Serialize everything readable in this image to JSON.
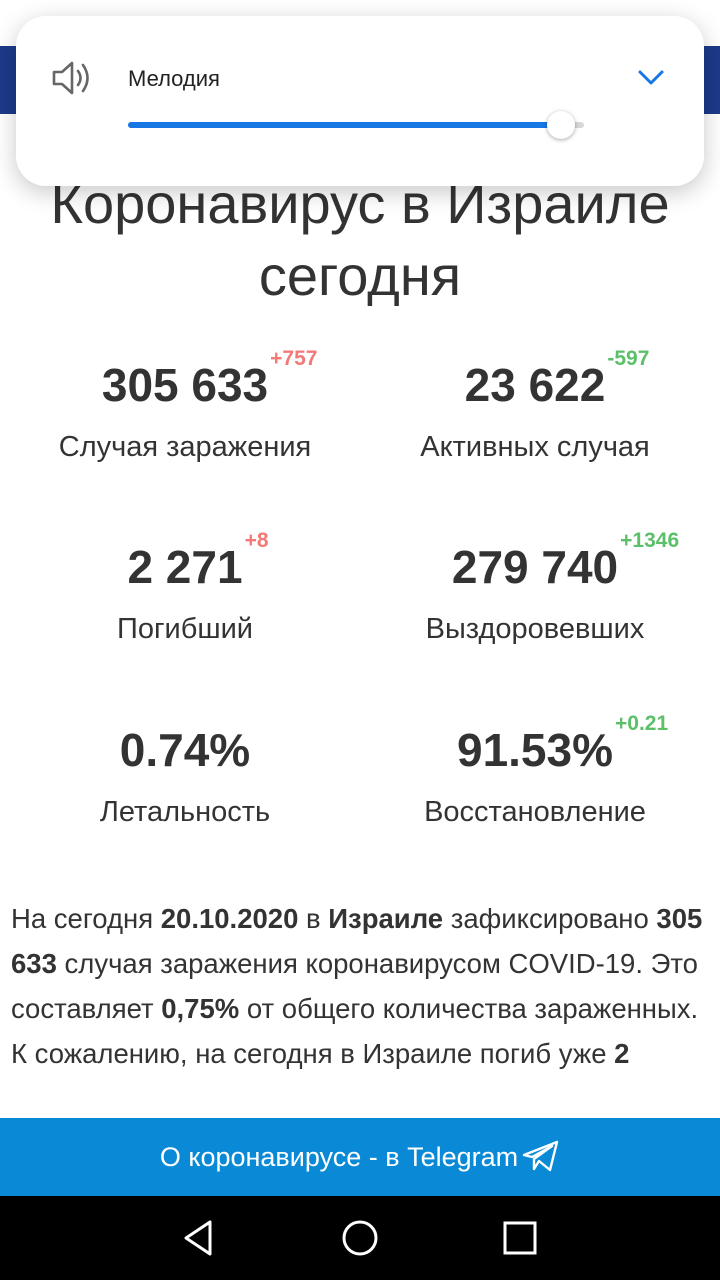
{
  "volume_panel": {
    "label": "Мелодия",
    "level": 0.95,
    "accent": "#1677e5",
    "icon": "speaker-icon",
    "expand_icon": "chevron-down-icon"
  },
  "page": {
    "title_line1": "Коронавирус в Израиле",
    "title_line2": "сегодня"
  },
  "stats": [
    {
      "value": "305 633",
      "delta": "+757",
      "delta_color": "red",
      "label": "Случая заражения"
    },
    {
      "value": "23 622",
      "delta": "-597",
      "delta_color": "green",
      "label": "Активных случая"
    },
    {
      "value": "2 271",
      "delta": "+8",
      "delta_color": "red",
      "label": "Погибший"
    },
    {
      "value": "279 740",
      "delta": "+1346",
      "delta_color": "green",
      "label": "Выздоровевших"
    },
    {
      "value": "0.74%",
      "delta": "",
      "delta_color": "red",
      "label": "Летальность"
    },
    {
      "value": "91.53%",
      "delta": "+0.21",
      "delta_color": "green",
      "label": "Восстановление"
    }
  ],
  "description": {
    "p1": "На сегодня ",
    "date": "20.10.2020",
    "p2": " в ",
    "country": "Израиле",
    "p3": " зафиксировано ",
    "cases": "305 633",
    "p4": " случая заражения коронавирусом COVID-19. Это составляет ",
    "percent": "0,75%",
    "p5": " от общего количества зараженных. К сожалению, на сегодня в Израиле погиб уже ",
    "deaths_start": "2"
  },
  "telegram_bar": {
    "label": "О коронавирусе - в Telegram",
    "icon": "telegram-plane-icon",
    "color": "#0a8ad6"
  },
  "nav_bar": {
    "back_icon": "back-triangle-icon",
    "home_icon": "home-circle-icon",
    "recents_icon": "recents-square-icon"
  }
}
